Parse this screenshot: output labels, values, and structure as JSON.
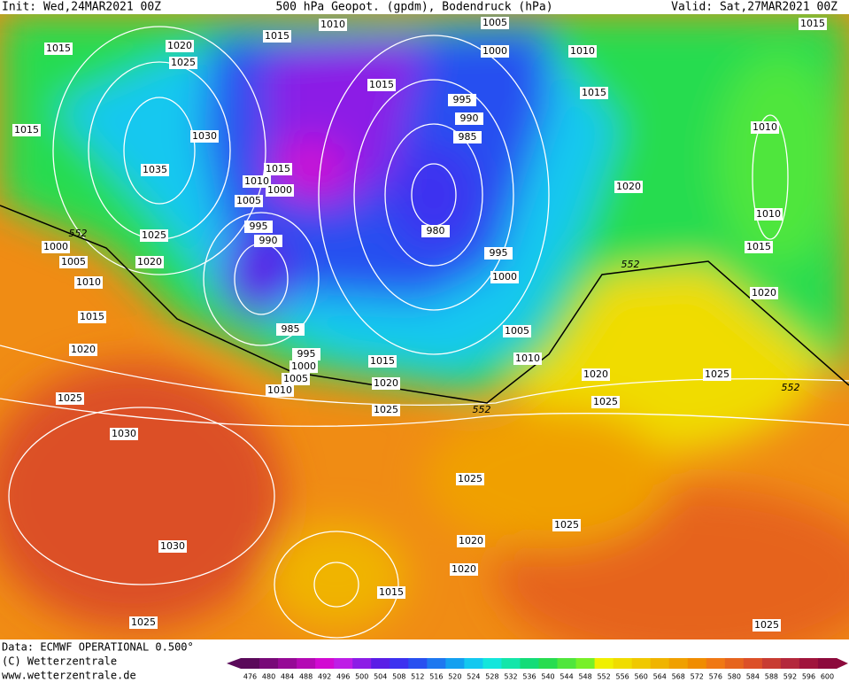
{
  "header": {
    "init": "Init: Wed,24MAR2021 00Z",
    "title": "500 hPa Geopot. (gpdm), Bodendruck (hPa)",
    "valid": "Valid: Sat,27MAR2021 00Z"
  },
  "isobar_labels": [
    "1015",
    "1020",
    "1025",
    "1015",
    "1010",
    "1005",
    "1000",
    "1010",
    "1015",
    "1015",
    "1015",
    "1030",
    "995",
    "990",
    "985",
    "1015",
    "1010",
    "1035",
    "1015",
    "1010",
    "1000",
    "1005",
    "1020",
    "1010",
    "995",
    "980",
    "1025",
    "552",
    "990",
    "1000",
    "1015",
    "995",
    "1005",
    "1020",
    "552",
    "1000",
    "1010",
    "1020",
    "1015",
    "985",
    "1005",
    "1020",
    "995",
    "1010",
    "1000",
    "1015",
    "1005",
    "1020",
    "1010",
    "1020",
    "1025",
    "552",
    "1025",
    "1025",
    "1025",
    "552",
    "1030",
    "1025",
    "1025",
    "1020",
    "1030",
    "1020",
    "1015",
    "1025",
    "1025"
  ],
  "footer": {
    "data": "Data: ECMWF OPERATIONAL 0.500°",
    "copyright": "(C) Wetterzentrale",
    "url": "www.wetterzentrale.de"
  },
  "colorbar": {
    "labels": [
      476,
      480,
      484,
      488,
      492,
      496,
      500,
      504,
      508,
      512,
      516,
      520,
      524,
      528,
      532,
      536,
      540,
      544,
      548,
      552,
      556,
      560,
      564,
      568,
      572,
      576,
      580,
      584,
      588,
      592,
      596,
      600
    ],
    "colors": [
      "#5a0a5a",
      "#780a78",
      "#960a96",
      "#b40ab4",
      "#d20ad2",
      "#be1ee6",
      "#8c1ee6",
      "#5a1ee6",
      "#3c32f0",
      "#2850f0",
      "#1e78f0",
      "#14a0f0",
      "#14c8f0",
      "#14e6dc",
      "#14e6aa",
      "#14dc78",
      "#28dc50",
      "#50e63c",
      "#78f028",
      "#f0f000",
      "#f0dc00",
      "#f0c800",
      "#f0b400",
      "#f0a000",
      "#f08c00",
      "#f07814",
      "#e6641e",
      "#dc5028",
      "#c83c32",
      "#b4283c",
      "#a0143c",
      "#8c0a3c"
    ]
  }
}
